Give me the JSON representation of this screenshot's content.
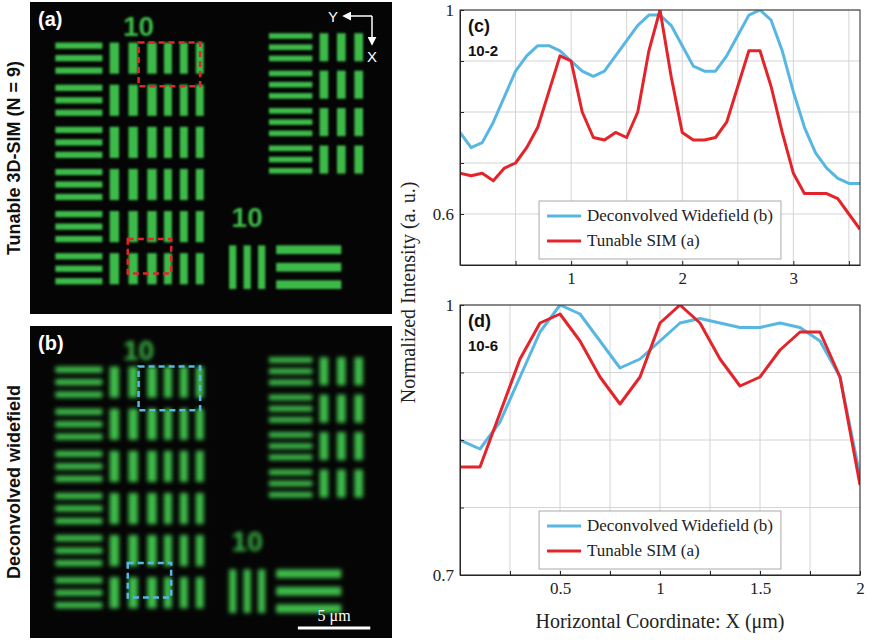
{
  "figure": {
    "y_title": "Normalized Intensity (a. u.)",
    "x_title": "Horizontal Coordinate: X (μm)"
  },
  "images": [
    {
      "panel": "(a)",
      "side_label": "Tunable 3D-SIM (N = 9)",
      "axis_labels": [
        "Y",
        "X"
      ],
      "pattern_labels": [
        "10",
        "10"
      ],
      "box_color": "#e3242b"
    },
    {
      "panel": "(b)",
      "side_label": "Deconvolved widefield",
      "pattern_labels": [
        "10",
        "10"
      ],
      "box_color": "#58b6e3",
      "scale_bar": "5 μm"
    }
  ],
  "chart_data": [
    {
      "type": "line",
      "panel": "(c)",
      "annotation": "10-2",
      "x": [
        0,
        0.1,
        0.2,
        0.3,
        0.4,
        0.5,
        0.6,
        0.7,
        0.8,
        0.9,
        1.0,
        1.1,
        1.2,
        1.3,
        1.4,
        1.5,
        1.6,
        1.7,
        1.8,
        1.9,
        2.0,
        2.1,
        2.2,
        2.3,
        2.4,
        2.5,
        2.6,
        2.7,
        2.8,
        2.9,
        3.0,
        3.1,
        3.2,
        3.3,
        3.4,
        3.5,
        3.6
      ],
      "xlim": [
        0,
        3.6
      ],
      "xticks": [
        {
          "value": 0.5,
          "label": null
        },
        1,
        {
          "value": 1.5,
          "label": null
        },
        2,
        {
          "value": 2.5,
          "label": null
        },
        3,
        {
          "value": 3.5,
          "label": null
        }
      ],
      "ylim": [
        0.5,
        1
      ],
      "yticks": [
        0.6,
        {
          "value": 0.7,
          "label": null
        },
        {
          "value": 0.8,
          "label": null
        },
        {
          "value": 0.9,
          "label": null
        },
        1
      ],
      "grid": true,
      "legend": "lower center",
      "series": [
        {
          "name": "Deconvolved Widefield (b)",
          "color": "#58b6e3",
          "values": [
            0.76,
            0.73,
            0.74,
            0.78,
            0.83,
            0.88,
            0.91,
            0.93,
            0.93,
            0.92,
            0.9,
            0.88,
            0.87,
            0.88,
            0.91,
            0.94,
            0.97,
            0.99,
            0.99,
            0.97,
            0.93,
            0.89,
            0.88,
            0.88,
            0.91,
            0.95,
            0.99,
            1.0,
            0.98,
            0.92,
            0.84,
            0.77,
            0.72,
            0.69,
            0.67,
            0.66,
            0.66
          ]
        },
        {
          "name": "Tunable SIM (a)",
          "color": "#e3242b",
          "values": [
            0.68,
            0.675,
            0.68,
            0.665,
            0.69,
            0.7,
            0.73,
            0.77,
            0.84,
            0.91,
            0.9,
            0.8,
            0.75,
            0.745,
            0.76,
            0.75,
            0.8,
            0.92,
            1.0,
            0.87,
            0.76,
            0.745,
            0.745,
            0.75,
            0.78,
            0.85,
            0.92,
            0.92,
            0.85,
            0.76,
            0.68,
            0.64,
            0.64,
            0.64,
            0.63,
            0.6,
            0.57
          ]
        }
      ]
    },
    {
      "type": "line",
      "panel": "(d)",
      "annotation": "10-6",
      "x": [
        0,
        0.1,
        0.2,
        0.3,
        0.4,
        0.5,
        0.6,
        0.7,
        0.8,
        0.9,
        1.0,
        1.1,
        1.2,
        1.3,
        1.4,
        1.5,
        1.6,
        1.7,
        1.8,
        1.9,
        2.0
      ],
      "xlim": [
        0,
        2
      ],
      "xticks": [
        {
          "value": 0.25,
          "label": null
        },
        0.5,
        {
          "value": 0.75,
          "label": null
        },
        1,
        {
          "value": 1.25,
          "label": null
        },
        1.5,
        {
          "value": 1.75,
          "label": null
        },
        2
      ],
      "ylim": [
        0.7,
        1
      ],
      "yticks": [
        0.7,
        {
          "value": 0.775,
          "label": null
        },
        {
          "value": 0.85,
          "label": null
        },
        {
          "value": 0.925,
          "label": null
        },
        1
      ],
      "grid": true,
      "legend": "lower center",
      "series": [
        {
          "name": "Deconvolved Widefield (b)",
          "color": "#58b6e3",
          "values": [
            0.85,
            0.84,
            0.87,
            0.92,
            0.97,
            1.0,
            0.99,
            0.96,
            0.93,
            0.94,
            0.96,
            0.98,
            0.985,
            0.98,
            0.975,
            0.975,
            0.98,
            0.975,
            0.96,
            0.92,
            0.81
          ]
        },
        {
          "name": "Tunable SIM (a)",
          "color": "#e3242b",
          "values": [
            0.82,
            0.82,
            0.88,
            0.94,
            0.98,
            0.99,
            0.96,
            0.92,
            0.89,
            0.92,
            0.98,
            1.0,
            0.98,
            0.94,
            0.91,
            0.92,
            0.95,
            0.97,
            0.97,
            0.92,
            0.8
          ]
        }
      ]
    }
  ]
}
